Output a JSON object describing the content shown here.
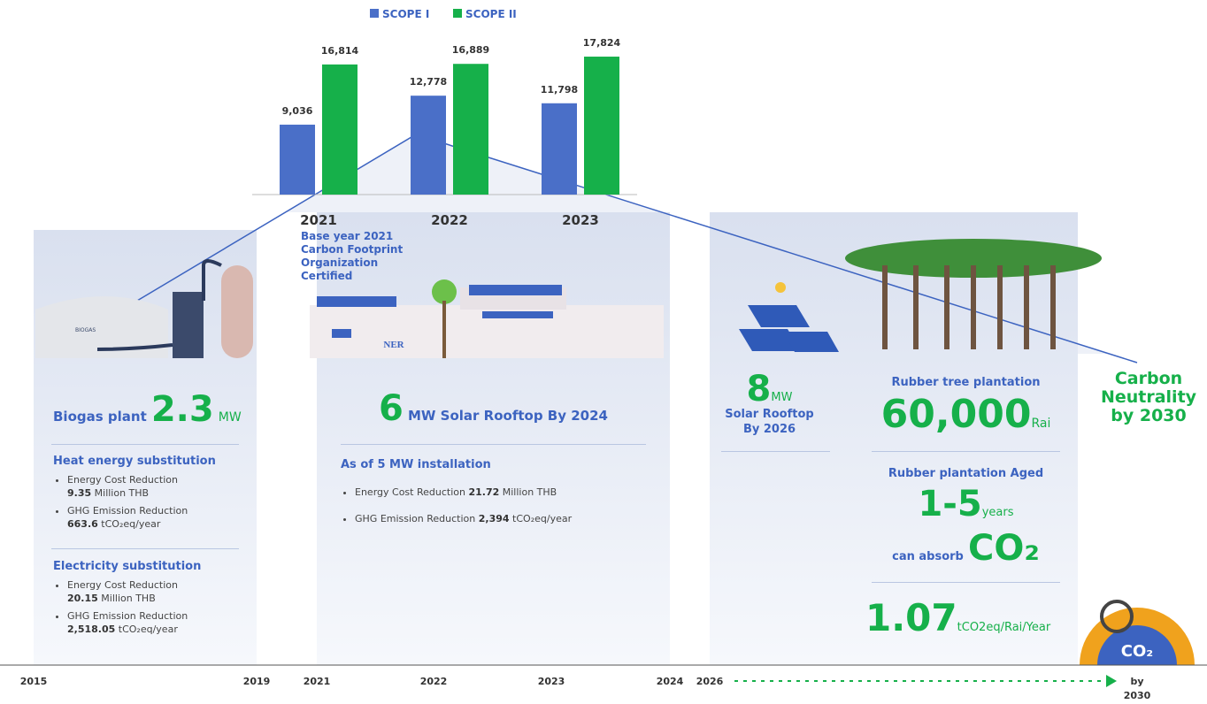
{
  "chart_data": {
    "type": "bar",
    "categories": [
      "2021",
      "2022",
      "2023"
    ],
    "series": [
      {
        "name": "SCOPE I",
        "color": "#4a6fc8",
        "values": [
          9036,
          12778,
          11798
        ],
        "value_labels": [
          "9,036",
          "12,778",
          "11,798"
        ]
      },
      {
        "name": "SCOPE II",
        "color": "#16b04a",
        "values": [
          16814,
          16889,
          17824
        ],
        "value_labels": [
          "16,814",
          "16,889",
          "17,824"
        ]
      }
    ],
    "ylim": [
      0,
      20000
    ]
  },
  "timeline": {
    "years": [
      "2015",
      "2019",
      "2021",
      "2022",
      "2023",
      "2024",
      "2026"
    ],
    "end": [
      "by",
      "2030"
    ]
  },
  "base_year": [
    "Base year 2021",
    "Carbon Footprint",
    "Organization",
    "Certified"
  ],
  "illustration": {
    "building": "NER",
    "biogas": "BIOGAS",
    "gauge": "CO₂"
  },
  "biogas": {
    "title": "Biogas plant",
    "value": "2.3",
    "unit": "MW",
    "sections": [
      {
        "heading": "Heat energy substitution",
        "items": [
          {
            "label": "Energy Cost Reduction",
            "value": "9.35",
            "unit": "Million THB"
          },
          {
            "label": "GHG Emission Reduction",
            "value": "663.6",
            "unit": "tCO₂eq/year"
          }
        ]
      },
      {
        "heading": "Electricity substitution",
        "items": [
          {
            "label": "Energy Cost Reduction",
            "value": "20.15",
            "unit": "Million THB"
          },
          {
            "label": "GHG Emission Reduction",
            "value": "2,518.05",
            "unit": "tCO₂eq/year"
          }
        ]
      }
    ]
  },
  "solar_2024": {
    "value": "6",
    "unit": "MW Solar Rooftop By 2024",
    "heading": "As of 5 MW installation",
    "items": [
      {
        "label": "Energy Cost Reduction",
        "value": "21.72",
        "unit": "Million THB"
      },
      {
        "label": "GHG Emission Reduction",
        "value": "2,394",
        "unit": "tCO₂eq/year"
      }
    ]
  },
  "solar_2026": {
    "value": "8",
    "unit": "MW",
    "lines": [
      "Solar Rooftop",
      "By 2026"
    ]
  },
  "rubber": {
    "title": "Rubber tree plantation",
    "value": "60,000",
    "unit": "Rai",
    "aged": "Rubber plantation Aged",
    "range": "1-5",
    "range_unit": "years",
    "absorb": "can absorb",
    "absorb_value": "CO₂",
    "rate": "1.07",
    "rate_unit": "tCO2eq/Rai/Year"
  },
  "goal": [
    "Carbon",
    "Neutrality",
    "by 2030"
  ]
}
